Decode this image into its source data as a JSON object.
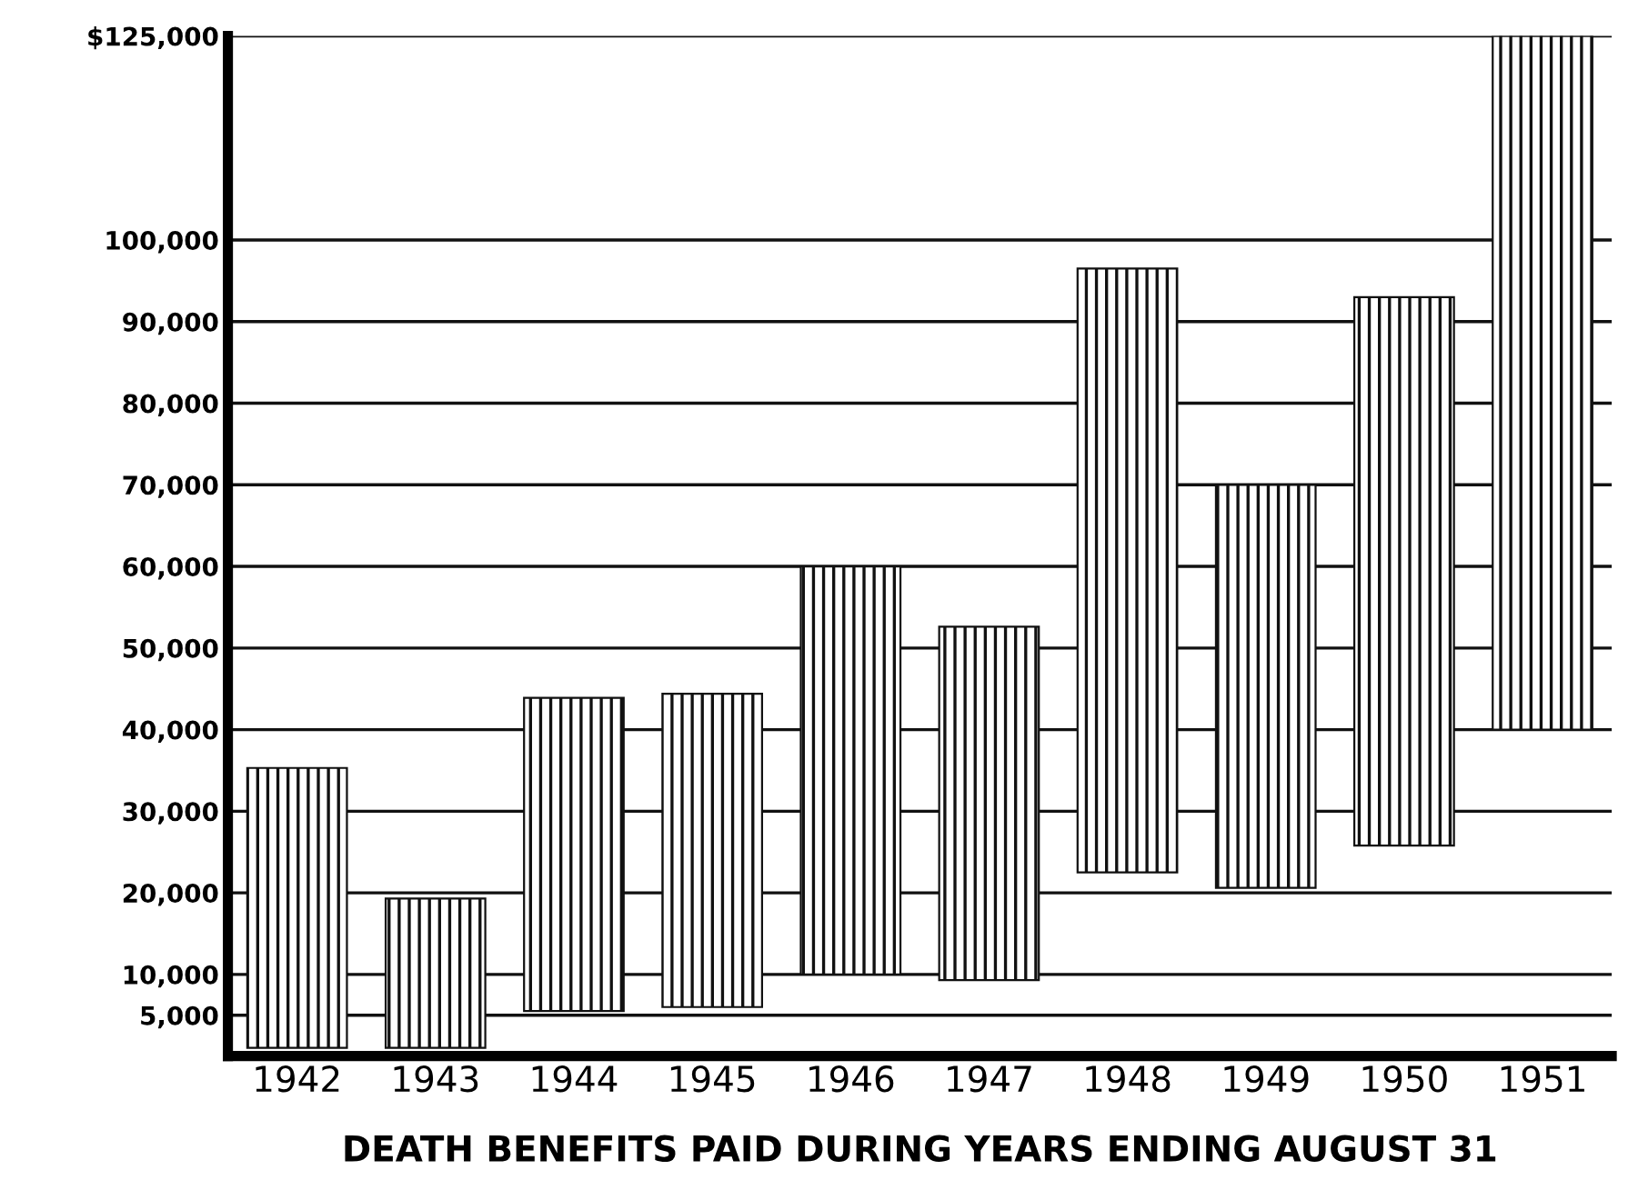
{
  "chart_data": {
    "type": "bar",
    "xlabel": "DEATH BENEFITS PAID DURING YEARS ENDING AUGUST 31",
    "categories": [
      "1942",
      "1943",
      "1944",
      "1945",
      "1946",
      "1947",
      "1948",
      "1949",
      "1950",
      "1951"
    ],
    "base": [
      1000,
      1000,
      5500,
      6000,
      10000,
      9300,
      22500,
      20600,
      25800,
      40000
    ],
    "values": [
      34300,
      18300,
      38400,
      38400,
      50000,
      43300,
      74000,
      49400,
      67200,
      85000
    ],
    "color": "#111111",
    "ylim": [
      0,
      125000
    ],
    "yticks": [
      {
        "value": 5000,
        "label": "5,000"
      },
      {
        "value": 10000,
        "label": "10,000"
      },
      {
        "value": 20000,
        "label": "20,000"
      },
      {
        "value": 30000,
        "label": "30,000"
      },
      {
        "value": 40000,
        "label": "40,000"
      },
      {
        "value": 50000,
        "label": "50,000"
      },
      {
        "value": 60000,
        "label": "60,000"
      },
      {
        "value": 70000,
        "label": "70,000"
      },
      {
        "value": 80000,
        "label": "80,000"
      },
      {
        "value": 90000,
        "label": "90,000"
      },
      {
        "value": 100000,
        "label": "100,000"
      },
      {
        "value": 125000,
        "label": "$125,000"
      }
    ],
    "grid": "y"
  }
}
